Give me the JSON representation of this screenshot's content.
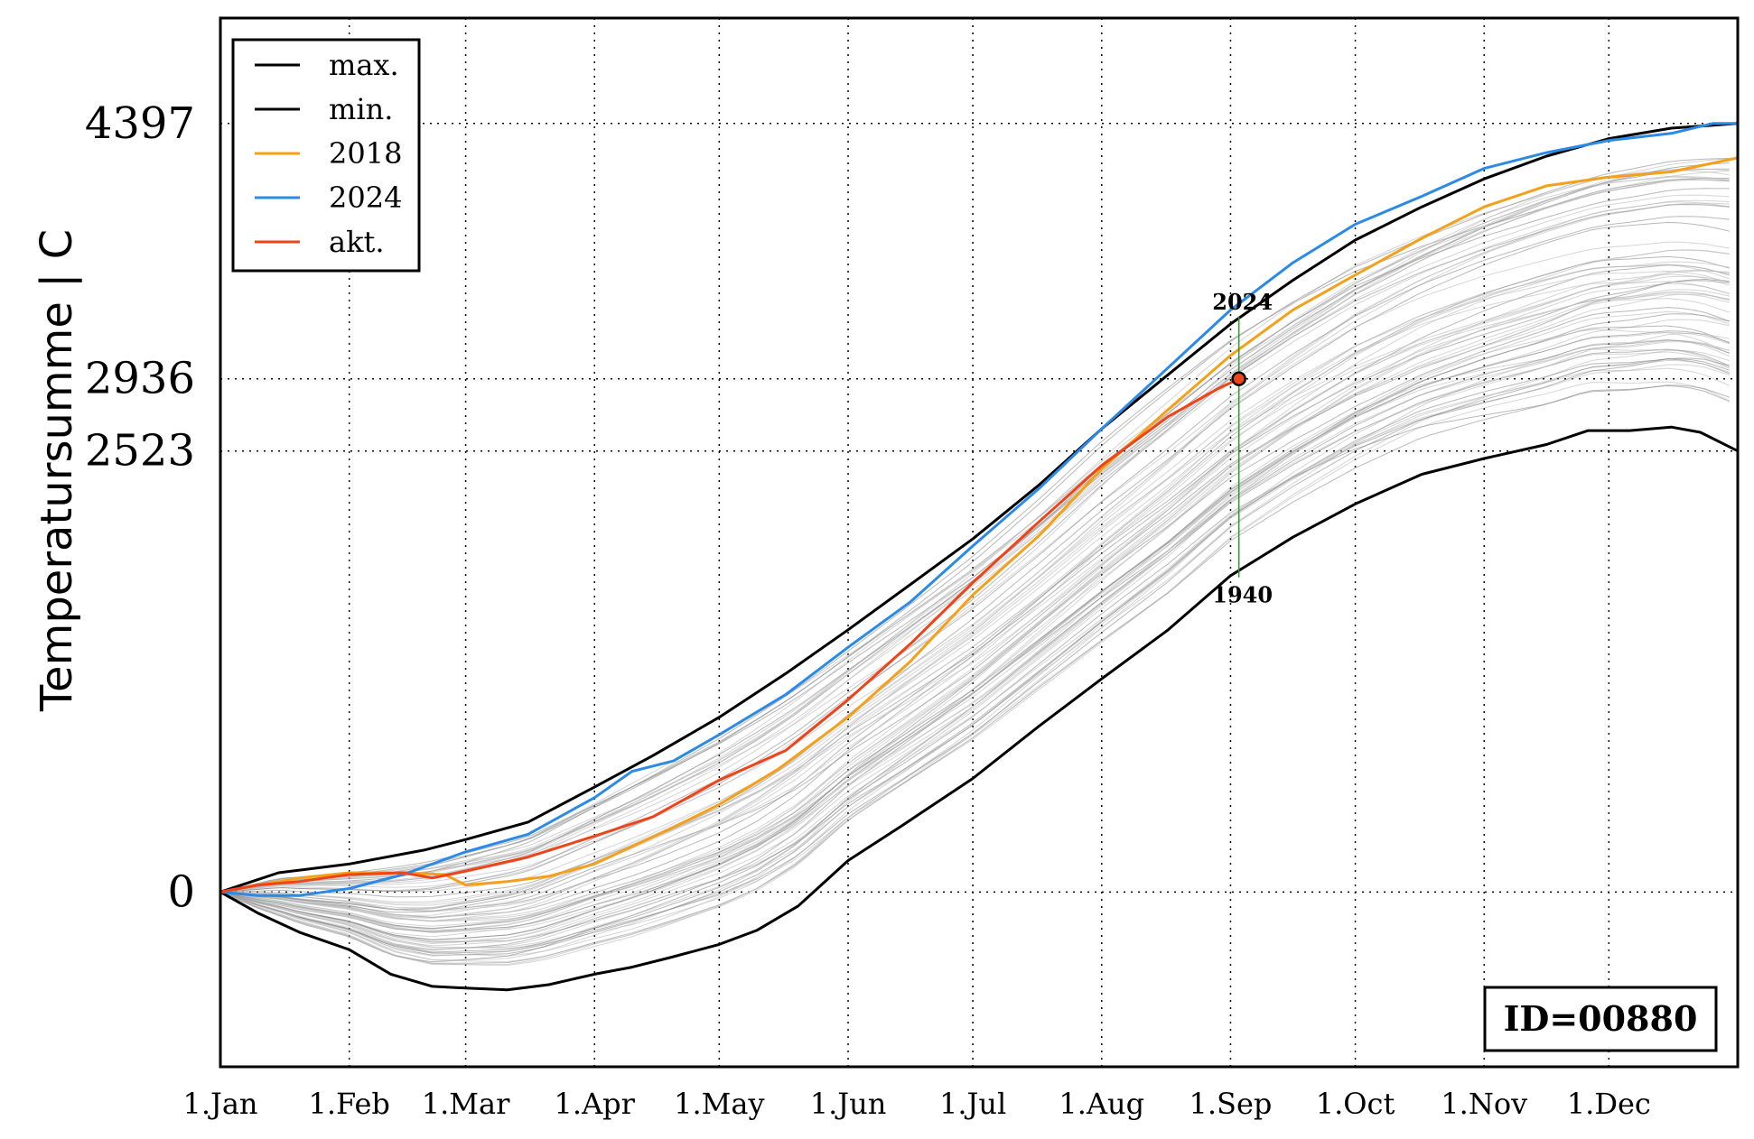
{
  "chart_data": {
    "type": "line",
    "ylabel": "Temperatursumme | C",
    "x_unit": "day of year",
    "xlim": [
      1,
      366
    ],
    "ylim": [
      -1000,
      5000
    ],
    "x_ticks": [
      {
        "day": 1,
        "label": "1.Jan"
      },
      {
        "day": 32,
        "label": "1.Feb"
      },
      {
        "day": 60,
        "label": "1.Mar"
      },
      {
        "day": 91,
        "label": "1.Apr"
      },
      {
        "day": 121,
        "label": "1.May"
      },
      {
        "day": 152,
        "label": "1.Jun"
      },
      {
        "day": 182,
        "label": "1.Jul"
      },
      {
        "day": 213,
        "label": "1.Aug"
      },
      {
        "day": 244,
        "label": "1.Sep"
      },
      {
        "day": 274,
        "label": "1.Oct"
      },
      {
        "day": 305,
        "label": "1.Nov"
      },
      {
        "day": 335,
        "label": "1.Dec"
      }
    ],
    "y_ticks": [
      {
        "value": 0,
        "label": "0"
      },
      {
        "value": 2523,
        "label": "2523"
      },
      {
        "value": 2936,
        "label": "2936"
      },
      {
        "value": 4397,
        "label": "4397"
      }
    ],
    "grid": "dotted",
    "legend_position": "top-left",
    "series": [
      {
        "name": "max.",
        "color": "#000000",
        "width": 3,
        "points": [
          [
            1,
            0
          ],
          [
            15,
            110
          ],
          [
            32,
            160
          ],
          [
            50,
            240
          ],
          [
            60,
            300
          ],
          [
            75,
            400
          ],
          [
            91,
            600
          ],
          [
            105,
            780
          ],
          [
            121,
            1000
          ],
          [
            137,
            1250
          ],
          [
            152,
            1500
          ],
          [
            167,
            1760
          ],
          [
            182,
            2020
          ],
          [
            198,
            2330
          ],
          [
            213,
            2650
          ],
          [
            229,
            2960
          ],
          [
            244,
            3250
          ],
          [
            259,
            3500
          ],
          [
            274,
            3730
          ],
          [
            290,
            3920
          ],
          [
            305,
            4080
          ],
          [
            320,
            4210
          ],
          [
            335,
            4310
          ],
          [
            350,
            4370
          ],
          [
            366,
            4397
          ]
        ]
      },
      {
        "name": "min.",
        "color": "#000000",
        "width": 3,
        "points": [
          [
            1,
            0
          ],
          [
            10,
            -120
          ],
          [
            20,
            -230
          ],
          [
            32,
            -330
          ],
          [
            42,
            -470
          ],
          [
            52,
            -540
          ],
          [
            60,
            -550
          ],
          [
            70,
            -560
          ],
          [
            80,
            -530
          ],
          [
            91,
            -470
          ],
          [
            100,
            -430
          ],
          [
            110,
            -370
          ],
          [
            121,
            -300
          ],
          [
            130,
            -220
          ],
          [
            140,
            -80
          ],
          [
            152,
            180
          ],
          [
            165,
            380
          ],
          [
            182,
            650
          ],
          [
            198,
            950
          ],
          [
            213,
            1220
          ],
          [
            229,
            1500
          ],
          [
            244,
            1810
          ],
          [
            259,
            2030
          ],
          [
            274,
            2220
          ],
          [
            290,
            2390
          ],
          [
            305,
            2480
          ],
          [
            320,
            2560
          ],
          [
            330,
            2640
          ],
          [
            340,
            2640
          ],
          [
            350,
            2660
          ],
          [
            357,
            2630
          ],
          [
            366,
            2523
          ]
        ]
      },
      {
        "name": "2018",
        "color": "#f5a01a",
        "width": 3,
        "points": [
          [
            1,
            0
          ],
          [
            10,
            40
          ],
          [
            20,
            80
          ],
          [
            32,
            110
          ],
          [
            45,
            110
          ],
          [
            55,
            100
          ],
          [
            60,
            40
          ],
          [
            70,
            60
          ],
          [
            80,
            90
          ],
          [
            91,
            160
          ],
          [
            100,
            260
          ],
          [
            110,
            370
          ],
          [
            121,
            500
          ],
          [
            135,
            700
          ],
          [
            152,
            1000
          ],
          [
            167,
            1320
          ],
          [
            182,
            1700
          ],
          [
            198,
            2040
          ],
          [
            213,
            2420
          ],
          [
            229,
            2760
          ],
          [
            244,
            3070
          ],
          [
            259,
            3330
          ],
          [
            274,
            3530
          ],
          [
            290,
            3740
          ],
          [
            305,
            3920
          ],
          [
            320,
            4040
          ],
          [
            335,
            4090
          ],
          [
            350,
            4120
          ],
          [
            366,
            4200
          ]
        ]
      },
      {
        "name": "2024",
        "color": "#2a8ae6",
        "width": 3,
        "points": [
          [
            1,
            0
          ],
          [
            10,
            -20
          ],
          [
            20,
            -20
          ],
          [
            32,
            20
          ],
          [
            45,
            100
          ],
          [
            60,
            230
          ],
          [
            75,
            330
          ],
          [
            91,
            540
          ],
          [
            100,
            690
          ],
          [
            110,
            750
          ],
          [
            121,
            900
          ],
          [
            137,
            1130
          ],
          [
            152,
            1400
          ],
          [
            167,
            1660
          ],
          [
            182,
            1980
          ],
          [
            198,
            2310
          ],
          [
            213,
            2650
          ],
          [
            229,
            3000
          ],
          [
            244,
            3330
          ],
          [
            259,
            3600
          ],
          [
            274,
            3820
          ],
          [
            290,
            3980
          ],
          [
            305,
            4140
          ],
          [
            320,
            4230
          ],
          [
            335,
            4300
          ],
          [
            350,
            4340
          ],
          [
            360,
            4397
          ],
          [
            366,
            4397
          ]
        ]
      },
      {
        "name": "akt.",
        "color": "#ef4418",
        "width": 3,
        "points": [
          [
            1,
            0
          ],
          [
            10,
            40
          ],
          [
            20,
            60
          ],
          [
            32,
            100
          ],
          [
            45,
            110
          ],
          [
            52,
            80
          ],
          [
            60,
            120
          ],
          [
            75,
            200
          ],
          [
            91,
            320
          ],
          [
            105,
            430
          ],
          [
            121,
            640
          ],
          [
            137,
            810
          ],
          [
            152,
            1100
          ],
          [
            167,
            1420
          ],
          [
            182,
            1770
          ],
          [
            198,
            2120
          ],
          [
            213,
            2440
          ],
          [
            229,
            2720
          ],
          [
            241,
            2880
          ],
          [
            246,
            2936
          ]
        ]
      }
    ],
    "history_lines": "gray spaghetti of past years between min. and max.",
    "current_point": {
      "day": 246,
      "value": 2936
    },
    "range_markers": {
      "day": 246,
      "upper": {
        "value": 3290,
        "label": "2024"
      },
      "lower": {
        "value": 1800,
        "label": "1940"
      }
    },
    "annotation": "ID=00880"
  }
}
